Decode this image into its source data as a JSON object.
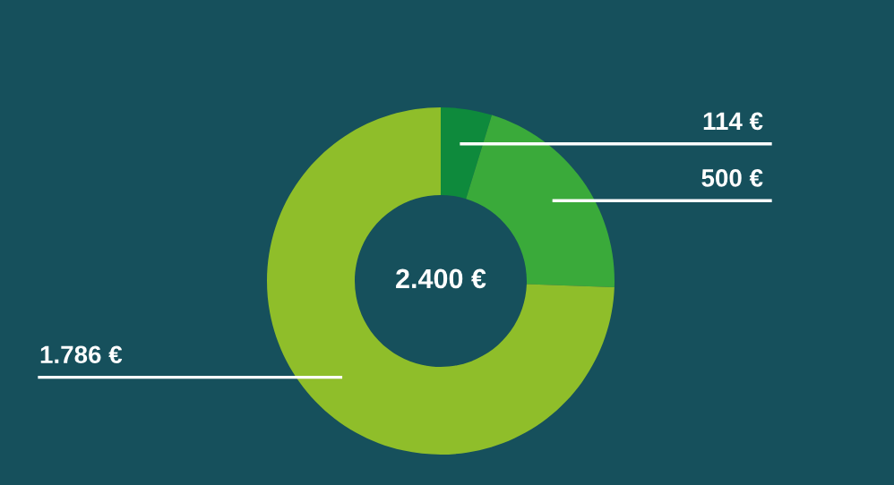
{
  "chart_data": {
    "type": "donut",
    "categories": [
      null,
      null,
      null
    ],
    "values": [
      114,
      500,
      1786
    ],
    "colors": [
      "#0e8a3c",
      "#3aaa3a",
      "#8fbe2a"
    ],
    "value_labels": [
      "114 €",
      "500 €",
      "1.786 €"
    ],
    "annotations": [
      "2.400 €"
    ]
  }
}
